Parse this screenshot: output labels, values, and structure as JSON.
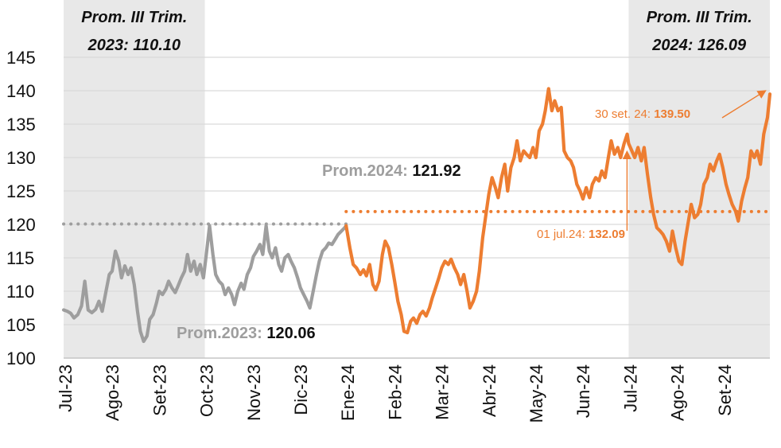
{
  "chart_data": {
    "type": "line",
    "ylim": [
      100,
      145
    ],
    "yticks": [
      "100",
      "105",
      "110",
      "115",
      "120",
      "125",
      "130",
      "135",
      "140",
      "145"
    ],
    "x_months": [
      "Jul-23",
      "Ago-23",
      "Set-23",
      "Oct-23",
      "Nov-23",
      "Dic-23",
      "Ene-24",
      "Feb-24",
      "Mar-24",
      "Abr-24",
      "May-24",
      "Jun-24",
      "Jul-24",
      "Ago-24",
      "Set-24"
    ],
    "colors": {
      "series_2023": "#9e9e9e",
      "series_2024": "#ed7d31",
      "shade": "#e8e8e8",
      "grid": "#d9d9d9"
    },
    "shaded_regions": [
      {
        "from": 0,
        "to": 3,
        "label_line1": "Prom. III Trim.",
        "label_line2": "2023: 110.10"
      },
      {
        "from": 12,
        "to": 15,
        "label_line1": "Prom. III Trim.",
        "label_line2": "2024: 126.09"
      }
    ],
    "average_lines": [
      {
        "label": "Prom.2023: ",
        "value": "120.06",
        "y": 120.06,
        "x_from": 0,
        "x_to": 6,
        "color": "#9e9e9e"
      },
      {
        "label": "Prom.2024: ",
        "value": "121.92",
        "y": 121.92,
        "x_from": 6,
        "x_to": 15,
        "color": "#ed7d31"
      }
    ],
    "annotations": [
      {
        "label": "01 jul.24: ",
        "value": "132.09",
        "x": 12.0,
        "y": 132.09
      },
      {
        "label": "30 set. 24: ",
        "value": "139.50",
        "x": 14.95,
        "y": 139.5
      }
    ],
    "series": [
      {
        "color": "#9e9e9e",
        "points": [
          [
            0.0,
            107.2
          ],
          [
            0.08,
            107.0
          ],
          [
            0.15,
            106.7
          ],
          [
            0.22,
            106.0
          ],
          [
            0.3,
            106.5
          ],
          [
            0.38,
            107.8
          ],
          [
            0.45,
            111.5
          ],
          [
            0.52,
            107.2
          ],
          [
            0.6,
            106.8
          ],
          [
            0.68,
            107.3
          ],
          [
            0.75,
            108.5
          ],
          [
            0.82,
            107.0
          ],
          [
            0.9,
            110.0
          ],
          [
            0.97,
            112.5
          ],
          [
            1.03,
            113.0
          ],
          [
            1.1,
            116.0
          ],
          [
            1.17,
            114.5
          ],
          [
            1.23,
            112.0
          ],
          [
            1.3,
            113.8
          ],
          [
            1.37,
            112.5
          ],
          [
            1.43,
            113.5
          ],
          [
            1.5,
            111.0
          ],
          [
            1.57,
            107.0
          ],
          [
            1.63,
            104.0
          ],
          [
            1.7,
            102.5
          ],
          [
            1.77,
            103.3
          ],
          [
            1.83,
            105.8
          ],
          [
            1.9,
            106.5
          ],
          [
            1.97,
            108.2
          ],
          [
            2.03,
            110.0
          ],
          [
            2.1,
            109.5
          ],
          [
            2.17,
            110.3
          ],
          [
            2.23,
            111.5
          ],
          [
            2.3,
            110.5
          ],
          [
            2.37,
            109.8
          ],
          [
            2.43,
            110.8
          ],
          [
            2.5,
            112.0
          ],
          [
            2.57,
            113.0
          ],
          [
            2.63,
            115.5
          ],
          [
            2.7,
            113.0
          ],
          [
            2.77,
            114.5
          ],
          [
            2.83,
            112.5
          ],
          [
            2.9,
            114.0
          ],
          [
            2.97,
            112.0
          ],
          [
            3.03,
            115.5
          ],
          [
            3.1,
            119.8
          ],
          [
            3.17,
            115.5
          ],
          [
            3.23,
            112.5
          ],
          [
            3.3,
            111.5
          ],
          [
            3.37,
            111.0
          ],
          [
            3.43,
            109.5
          ],
          [
            3.5,
            110.5
          ],
          [
            3.57,
            109.5
          ],
          [
            3.63,
            108.0
          ],
          [
            3.7,
            110.0
          ],
          [
            3.77,
            111.2
          ],
          [
            3.83,
            110.3
          ],
          [
            3.9,
            112.5
          ],
          [
            3.97,
            113.5
          ],
          [
            4.03,
            115.2
          ],
          [
            4.1,
            116.0
          ],
          [
            4.17,
            117.0
          ],
          [
            4.23,
            115.5
          ],
          [
            4.3,
            119.8
          ],
          [
            4.37,
            116.0
          ],
          [
            4.43,
            115.0
          ],
          [
            4.5,
            116.5
          ],
          [
            4.57,
            114.0
          ],
          [
            4.63,
            113.0
          ],
          [
            4.7,
            115.0
          ],
          [
            4.77,
            115.5
          ],
          [
            4.83,
            114.5
          ],
          [
            4.9,
            113.5
          ],
          [
            4.97,
            112.0
          ],
          [
            5.03,
            110.5
          ],
          [
            5.1,
            109.5
          ],
          [
            5.17,
            108.5
          ],
          [
            5.23,
            107.5
          ],
          [
            5.3,
            110.0
          ],
          [
            5.37,
            112.5
          ],
          [
            5.43,
            114.5
          ],
          [
            5.5,
            116.0
          ],
          [
            5.57,
            116.5
          ],
          [
            5.63,
            117.2
          ],
          [
            5.7,
            117.0
          ],
          [
            5.77,
            117.8
          ],
          [
            5.83,
            118.5
          ],
          [
            5.9,
            119.0
          ],
          [
            5.97,
            119.5
          ],
          [
            6.0,
            119.8
          ]
        ]
      },
      {
        "color": "#ed7d31",
        "points": [
          [
            6.0,
            119.8
          ],
          [
            6.08,
            116.5
          ],
          [
            6.15,
            114.0
          ],
          [
            6.22,
            113.5
          ],
          [
            6.3,
            112.5
          ],
          [
            6.37,
            113.2
          ],
          [
            6.43,
            112.3
          ],
          [
            6.5,
            114.0
          ],
          [
            6.57,
            111.0
          ],
          [
            6.63,
            110.2
          ],
          [
            6.7,
            111.5
          ],
          [
            6.77,
            115.5
          ],
          [
            6.83,
            117.5
          ],
          [
            6.9,
            116.5
          ],
          [
            6.97,
            114.0
          ],
          [
            7.03,
            111.5
          ],
          [
            7.1,
            108.5
          ],
          [
            7.17,
            106.5
          ],
          [
            7.23,
            104.0
          ],
          [
            7.3,
            103.8
          ],
          [
            7.37,
            105.5
          ],
          [
            7.43,
            106.0
          ],
          [
            7.5,
            105.2
          ],
          [
            7.57,
            106.5
          ],
          [
            7.63,
            107.0
          ],
          [
            7.7,
            106.3
          ],
          [
            7.77,
            107.5
          ],
          [
            7.83,
            109.0
          ],
          [
            7.9,
            110.5
          ],
          [
            7.97,
            112.0
          ],
          [
            8.03,
            113.5
          ],
          [
            8.1,
            114.5
          ],
          [
            8.17,
            114.0
          ],
          [
            8.23,
            114.8
          ],
          [
            8.3,
            113.5
          ],
          [
            8.37,
            112.5
          ],
          [
            8.43,
            111.0
          ],
          [
            8.5,
            112.5
          ],
          [
            8.57,
            110.0
          ],
          [
            8.63,
            107.5
          ],
          [
            8.7,
            108.5
          ],
          [
            8.77,
            110.0
          ],
          [
            8.83,
            113.0
          ],
          [
            8.9,
            118.0
          ],
          [
            8.97,
            121.5
          ],
          [
            9.03,
            124.5
          ],
          [
            9.1,
            127.0
          ],
          [
            9.17,
            125.5
          ],
          [
            9.23,
            124.0
          ],
          [
            9.3,
            127.0
          ],
          [
            9.37,
            129.0
          ],
          [
            9.43,
            125.0
          ],
          [
            9.5,
            128.5
          ],
          [
            9.57,
            130.0
          ],
          [
            9.63,
            132.5
          ],
          [
            9.7,
            129.5
          ],
          [
            9.77,
            131.0
          ],
          [
            9.83,
            130.5
          ],
          [
            9.9,
            130.0
          ],
          [
            9.97,
            131.5
          ],
          [
            10.03,
            130.0
          ],
          [
            10.1,
            134.0
          ],
          [
            10.17,
            135.0
          ],
          [
            10.23,
            137.0
          ],
          [
            10.3,
            140.3
          ],
          [
            10.37,
            137.0
          ],
          [
            10.43,
            138.5
          ],
          [
            10.5,
            137.0
          ],
          [
            10.57,
            137.5
          ],
          [
            10.63,
            131.0
          ],
          [
            10.7,
            130.0
          ],
          [
            10.77,
            129.5
          ],
          [
            10.83,
            128.5
          ],
          [
            10.9,
            126.0
          ],
          [
            10.97,
            125.0
          ],
          [
            11.03,
            123.8
          ],
          [
            11.1,
            125.5
          ],
          [
            11.17,
            124.0
          ],
          [
            11.23,
            126.0
          ],
          [
            11.3,
            127.0
          ],
          [
            11.37,
            126.5
          ],
          [
            11.43,
            128.0
          ],
          [
            11.5,
            127.0
          ],
          [
            11.57,
            130.0
          ],
          [
            11.63,
            132.5
          ],
          [
            11.7,
            130.5
          ],
          [
            11.77,
            131.5
          ],
          [
            11.83,
            130.0
          ],
          [
            11.9,
            132.0
          ],
          [
            11.97,
            133.5
          ],
          [
            12.0,
            132.09
          ],
          [
            12.07,
            131.0
          ],
          [
            12.13,
            130.0
          ],
          [
            12.2,
            131.5
          ],
          [
            12.27,
            129.5
          ],
          [
            12.33,
            131.5
          ],
          [
            12.4,
            127.5
          ],
          [
            12.47,
            124.0
          ],
          [
            12.53,
            121.5
          ],
          [
            12.6,
            119.5
          ],
          [
            12.67,
            119.0
          ],
          [
            12.73,
            118.5
          ],
          [
            12.8,
            117.5
          ],
          [
            12.87,
            116.0
          ],
          [
            12.93,
            119.0
          ],
          [
            13.0,
            116.5
          ],
          [
            13.07,
            114.5
          ],
          [
            13.13,
            114.0
          ],
          [
            13.2,
            117.5
          ],
          [
            13.27,
            120.5
          ],
          [
            13.33,
            123.0
          ],
          [
            13.4,
            121.0
          ],
          [
            13.47,
            121.5
          ],
          [
            13.53,
            123.0
          ],
          [
            13.6,
            126.0
          ],
          [
            13.67,
            127.0
          ],
          [
            13.73,
            129.0
          ],
          [
            13.8,
            128.0
          ],
          [
            13.87,
            129.5
          ],
          [
            13.93,
            130.5
          ],
          [
            14.0,
            128.5
          ],
          [
            14.07,
            126.0
          ],
          [
            14.13,
            124.5
          ],
          [
            14.2,
            123.0
          ],
          [
            14.27,
            122.0
          ],
          [
            14.33,
            120.5
          ],
          [
            14.4,
            123.5
          ],
          [
            14.47,
            125.5
          ],
          [
            14.53,
            127.0
          ],
          [
            14.6,
            131.0
          ],
          [
            14.67,
            130.0
          ],
          [
            14.73,
            131.0
          ],
          [
            14.8,
            129.0
          ],
          [
            14.87,
            133.5
          ],
          [
            14.95,
            136.0
          ],
          [
            15.0,
            139.5
          ]
        ]
      }
    ]
  }
}
